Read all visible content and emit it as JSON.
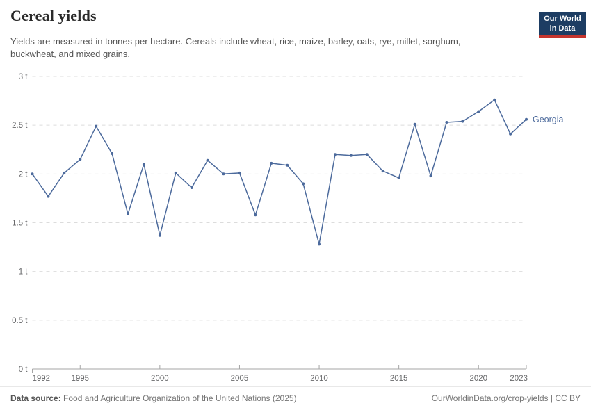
{
  "header": {
    "title": "Cereal yields",
    "subtitle": "Yields are measured in tonnes per hectare. Cereals include wheat, rice, maize, barley, oats, rye, millet, sorghum, buckwheat, and mixed grains.",
    "logo": {
      "line1": "Our World",
      "line2": "in Data",
      "bg_color": "#1d3d63",
      "accent_color": "#c5352e"
    }
  },
  "footer": {
    "source_label": "Data source:",
    "source_text": " Food and Agriculture Organization of the United Nations (2025)",
    "link_text": "OurWorldinData.org/crop-yields | CC BY"
  },
  "chart_data": {
    "type": "line",
    "title": "Cereal yields",
    "xlabel": "",
    "ylabel": "tonnes per hectare",
    "x": [
      1992,
      1993,
      1994,
      1995,
      1996,
      1997,
      1998,
      1999,
      2000,
      2001,
      2002,
      2003,
      2004,
      2005,
      2006,
      2007,
      2008,
      2009,
      2010,
      2011,
      2012,
      2013,
      2014,
      2015,
      2016,
      2017,
      2018,
      2019,
      2020,
      2021,
      2022,
      2023
    ],
    "series": [
      {
        "name": "Georgia",
        "color": "#4C6A9C",
        "values": [
          2.0,
          1.77,
          2.01,
          2.15,
          2.49,
          2.21,
          1.59,
          2.1,
          1.37,
          2.01,
          1.86,
          2.14,
          2.0,
          2.01,
          1.58,
          2.11,
          2.09,
          1.9,
          1.28,
          2.2,
          2.19,
          2.2,
          2.03,
          1.96,
          2.51,
          1.98,
          2.53,
          2.54,
          2.64,
          2.76,
          2.41,
          2.56
        ]
      }
    ],
    "ylim": [
      0,
      3
    ],
    "yticks": [
      0,
      0.5,
      1,
      1.5,
      2,
      2.5,
      3
    ],
    "ytick_labels": [
      "0 t",
      "0.5 t",
      "1 t",
      "1.5 t",
      "2 t",
      "2.5 t",
      "3 t"
    ],
    "xticks": [
      1992,
      1995,
      2000,
      2005,
      2010,
      2015,
      2020,
      2023
    ],
    "grid": "horizontal-dashed",
    "legend": "series-end-label"
  }
}
